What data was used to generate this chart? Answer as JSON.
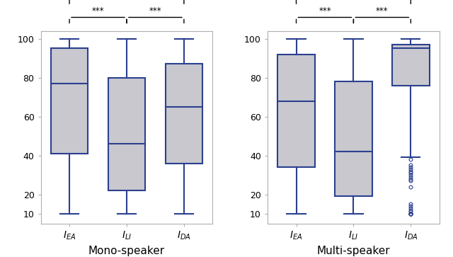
{
  "mono": {
    "IEA": {
      "q1": 41,
      "median": 77,
      "q3": 95,
      "whislo": 10,
      "whishi": 100
    },
    "ILI": {
      "q1": 22,
      "median": 46,
      "q3": 80,
      "whislo": 10,
      "whishi": 100
    },
    "IDA": {
      "q1": 36,
      "median": 65,
      "q3": 87,
      "whislo": 10,
      "whishi": 100
    }
  },
  "multi": {
    "IEA": {
      "q1": 34,
      "median": 68,
      "q3": 92,
      "whislo": 10,
      "whishi": 100
    },
    "ILI": {
      "q1": 19,
      "median": 42,
      "q3": 78,
      "whislo": 10,
      "whishi": 100
    },
    "IDA": {
      "q1": 76,
      "median": 95,
      "q3": 97,
      "whislo": 39,
      "whishi": 100,
      "fliers": [
        38,
        35,
        34,
        33,
        32,
        31,
        30,
        29,
        28,
        27,
        24,
        15,
        14,
        13,
        12,
        11,
        10,
        10,
        10,
        10,
        10
      ]
    }
  },
  "box_color": "#c8c8ce",
  "line_color": "#2b4090",
  "title_mono": "Mono-speaker",
  "title_multi": "Multi-speaker",
  "tick_labels": [
    "$I_{EA}$",
    "$I_{LI}$",
    "$I_{DA}$"
  ],
  "yticks": [
    10,
    20,
    40,
    60,
    80,
    100
  ],
  "ylim": [
    5,
    104
  ]
}
